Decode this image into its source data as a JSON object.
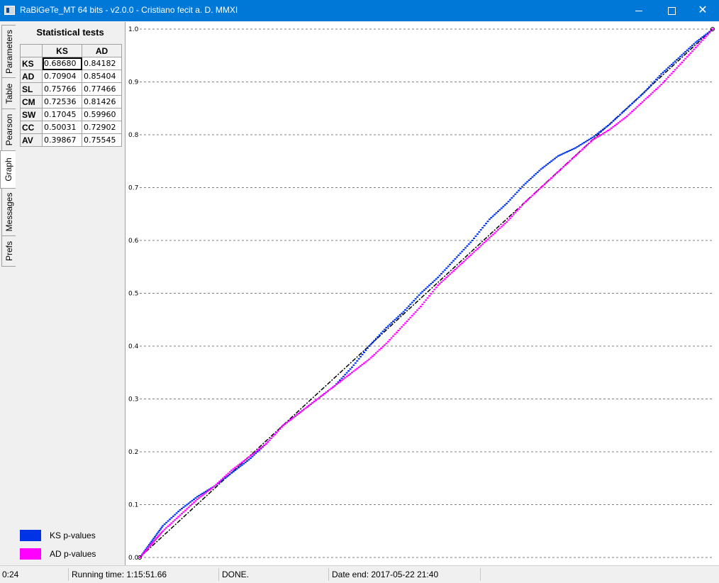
{
  "window": {
    "title": "RaBiGeTe_MT 64 bits - v2.0.0 - Cristiano fecit a. D. MMXI",
    "controls": {
      "minimize": "",
      "maximize": "",
      "close": "✕"
    }
  },
  "tabs": [
    {
      "label": "Parameters",
      "active": false
    },
    {
      "label": "Table",
      "active": false
    },
    {
      "label": "Pearson",
      "active": false
    },
    {
      "label": "Graph",
      "active": true
    },
    {
      "label": "Messages",
      "active": false
    },
    {
      "label": "Prefs",
      "active": false
    }
  ],
  "stats": {
    "title": "Statistical tests",
    "columns": [
      "KS",
      "AD"
    ],
    "rows": [
      {
        "label": "KS",
        "ks": "0.68680",
        "ad": "0.84182"
      },
      {
        "label": "AD",
        "ks": "0.70904",
        "ad": "0.85404"
      },
      {
        "label": "SL",
        "ks": "0.75766",
        "ad": "0.77466"
      },
      {
        "label": "CM",
        "ks": "0.72536",
        "ad": "0.81426"
      },
      {
        "label": "SW",
        "ks": "0.17045",
        "ad": "0.59960"
      },
      {
        "label": "CC",
        "ks": "0.50031",
        "ad": "0.72902"
      },
      {
        "label": "AV",
        "ks": "0.39867",
        "ad": "0.75545"
      }
    ]
  },
  "legend": [
    {
      "label": "KS p-values",
      "color": "#0033e6"
    },
    {
      "label": "AD p-values",
      "color": "#ff00ff"
    }
  ],
  "status": {
    "elapsed": "0:24",
    "running_time": "Running time: 1:15:51.66",
    "state": "DONE.",
    "date_end": "Date end: 2017-05-22 21:40"
  },
  "chart_data": {
    "type": "scatter",
    "ylim": [
      0,
      1
    ],
    "xlim": [
      0,
      1
    ],
    "yticks": [
      "0.0",
      "0.1",
      "0.2",
      "0.3",
      "0.4",
      "0.5",
      "0.6",
      "0.7",
      "0.8",
      "0.9",
      "1.0"
    ],
    "grid": "horizontal dashed",
    "reference_line": {
      "from": [
        0,
        0
      ],
      "to": [
        1,
        1
      ],
      "style": "dash-dot",
      "color": "#000000"
    },
    "series": [
      {
        "name": "KS p-values",
        "color": "#0033e6",
        "points": [
          [
            0,
            0
          ],
          [
            0.02,
            0.03
          ],
          [
            0.04,
            0.06
          ],
          [
            0.07,
            0.09
          ],
          [
            0.1,
            0.115
          ],
          [
            0.13,
            0.135
          ],
          [
            0.16,
            0.16
          ],
          [
            0.19,
            0.185
          ],
          [
            0.22,
            0.215
          ],
          [
            0.25,
            0.25
          ],
          [
            0.28,
            0.275
          ],
          [
            0.31,
            0.3
          ],
          [
            0.34,
            0.325
          ],
          [
            0.37,
            0.36
          ],
          [
            0.4,
            0.4
          ],
          [
            0.43,
            0.435
          ],
          [
            0.46,
            0.465
          ],
          [
            0.49,
            0.5
          ],
          [
            0.52,
            0.53
          ],
          [
            0.55,
            0.565
          ],
          [
            0.58,
            0.6
          ],
          [
            0.61,
            0.64
          ],
          [
            0.64,
            0.67
          ],
          [
            0.67,
            0.705
          ],
          [
            0.7,
            0.735
          ],
          [
            0.73,
            0.76
          ],
          [
            0.76,
            0.775
          ],
          [
            0.79,
            0.795
          ],
          [
            0.82,
            0.82
          ],
          [
            0.85,
            0.85
          ],
          [
            0.88,
            0.88
          ],
          [
            0.91,
            0.915
          ],
          [
            0.94,
            0.945
          ],
          [
            0.97,
            0.975
          ],
          [
            1,
            1
          ]
        ]
      },
      {
        "name": "AD p-values",
        "color": "#ff00ff",
        "points": [
          [
            0,
            0
          ],
          [
            0.02,
            0.025
          ],
          [
            0.04,
            0.05
          ],
          [
            0.07,
            0.08
          ],
          [
            0.1,
            0.11
          ],
          [
            0.13,
            0.135
          ],
          [
            0.16,
            0.165
          ],
          [
            0.19,
            0.19
          ],
          [
            0.22,
            0.215
          ],
          [
            0.25,
            0.25
          ],
          [
            0.28,
            0.275
          ],
          [
            0.31,
            0.3
          ],
          [
            0.34,
            0.325
          ],
          [
            0.37,
            0.35
          ],
          [
            0.4,
            0.375
          ],
          [
            0.43,
            0.405
          ],
          [
            0.46,
            0.44
          ],
          [
            0.49,
            0.475
          ],
          [
            0.52,
            0.515
          ],
          [
            0.55,
            0.545
          ],
          [
            0.58,
            0.575
          ],
          [
            0.61,
            0.605
          ],
          [
            0.64,
            0.635
          ],
          [
            0.67,
            0.67
          ],
          [
            0.7,
            0.7
          ],
          [
            0.73,
            0.73
          ],
          [
            0.76,
            0.76
          ],
          [
            0.79,
            0.79
          ],
          [
            0.82,
            0.81
          ],
          [
            0.85,
            0.835
          ],
          [
            0.88,
            0.865
          ],
          [
            0.91,
            0.895
          ],
          [
            0.94,
            0.93
          ],
          [
            0.97,
            0.965
          ],
          [
            1,
            1
          ]
        ]
      }
    ]
  }
}
